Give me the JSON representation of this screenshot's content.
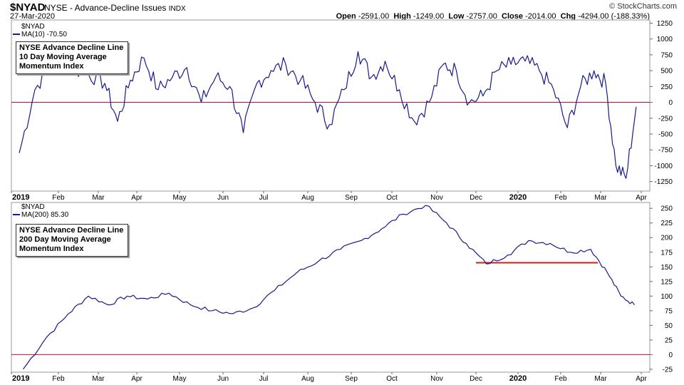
{
  "header": {
    "symbol": "$NYAD",
    "name": "NYSE - Advance-Decline Issues",
    "exchange": "INDX",
    "date": "27-Mar-2020",
    "credit": "© StockCharts.com",
    "open_label": "Open",
    "open": "-2591.00",
    "high_label": "High",
    "high": "-1249.00",
    "low_label": "Low",
    "low": "-2757.00",
    "close_label": "Close",
    "close": "-2014.00",
    "chg_label": "Chg",
    "chg": "-4294.00 (-188.33%)"
  },
  "colors": {
    "series": "#1a1a8a",
    "zero_line": "#b0103a",
    "support_line": "#d61a1a",
    "grid": "#e6e6e6"
  },
  "top_panel": {
    "symbol": "$NYAD",
    "ma_label": "MA(10) -70.50",
    "annotation": [
      "NYSE Advance Decline Line",
      "10 Day Moving Average",
      "Momentum Index"
    ]
  },
  "bottom_panel": {
    "symbol": "$NYAD",
    "ma_label": "MA(200) 85.30",
    "annotation": [
      "NYSE Advance Decline Line",
      "200 Day Moving Average",
      "Momentum Index"
    ]
  },
  "x_axis": {
    "labels": [
      "2019",
      "Feb",
      "Mar",
      "Apr",
      "May",
      "Jun",
      "Jul",
      "Aug",
      "Sep",
      "Oct",
      "Nov",
      "Dec",
      "2020",
      "Feb",
      "Mar",
      "Apr"
    ],
    "bold": [
      true,
      false,
      false,
      false,
      false,
      false,
      false,
      false,
      false,
      false,
      false,
      false,
      true,
      false,
      false,
      false
    ]
  },
  "chart_data": [
    {
      "type": "line",
      "series": [
        {
          "name": "MA(10)"
        }
      ],
      "x": [
        "2019-01",
        "2019-01",
        "2019-01",
        "2019-02",
        "2019-02",
        "2019-03",
        "2019-03",
        "2019-03",
        "2019-04",
        "2019-04",
        "2019-04",
        "2019-05",
        "2019-05",
        "2019-05",
        "2019-06",
        "2019-06",
        "2019-06",
        "2019-07",
        "2019-07",
        "2019-07",
        "2019-08",
        "2019-08",
        "2019-08",
        "2019-09",
        "2019-09",
        "2019-09",
        "2019-10",
        "2019-10",
        "2019-10",
        "2019-11",
        "2019-11",
        "2019-11",
        "2019-12",
        "2019-12",
        "2019-12",
        "2020-01",
        "2020-01",
        "2020-01",
        "2020-02",
        "2020-02",
        "2020-02",
        "2020-03",
        "2020-03",
        "2020-03",
        "2020-03"
      ],
      "values": [
        -800,
        200,
        600,
        550,
        450,
        300,
        -300,
        350,
        700,
        200,
        400,
        550,
        0,
        400,
        250,
        -480,
        300,
        500,
        600,
        350,
        0,
        -350,
        200,
        800,
        400,
        650,
        200,
        -300,
        0,
        600,
        500,
        0,
        100,
        500,
        600,
        650,
        500,
        200,
        -400,
        250,
        500,
        300,
        -1000,
        -1200,
        -70
      ],
      "ylim": [
        -1400,
        1300
      ],
      "yticks": [
        1250,
        1000,
        750,
        500,
        250,
        0,
        -250,
        -500,
        -750,
        -1000,
        -1250
      ],
      "zero_line": 0,
      "legend": "top-left",
      "grid": false
    },
    {
      "type": "line",
      "series": [
        {
          "name": "MA(200)"
        }
      ],
      "x": [
        "2019-01",
        "2019-01",
        "2019-02",
        "2019-02",
        "2019-03",
        "2019-03",
        "2019-04",
        "2019-04",
        "2019-05",
        "2019-05",
        "2019-06",
        "2019-06",
        "2019-07",
        "2019-07",
        "2019-08",
        "2019-08",
        "2019-09",
        "2019-09",
        "2019-10",
        "2019-10",
        "2019-11",
        "2019-11",
        "2019-12",
        "2019-12",
        "2020-01",
        "2020-01",
        "2020-02",
        "2020-02",
        "2020-03",
        "2020-03",
        "2020-03"
      ],
      "values": [
        -25,
        30,
        70,
        100,
        85,
        100,
        95,
        105,
        85,
        75,
        70,
        80,
        110,
        140,
        160,
        180,
        195,
        215,
        240,
        255,
        225,
        190,
        155,
        170,
        195,
        190,
        175,
        180,
        140,
        100,
        85
      ],
      "ylim": [
        -30,
        260
      ],
      "yticks": [
        250,
        225,
        200,
        175,
        150,
        125,
        100,
        75,
        50,
        25,
        0,
        -25
      ],
      "zero_line": 0,
      "support_line": {
        "from": "2019-12",
        "to": "2020-02",
        "value": 157
      },
      "legend": "top-left",
      "grid": false
    }
  ]
}
